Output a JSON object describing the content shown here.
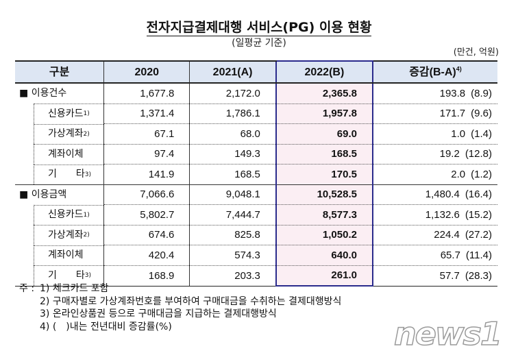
{
  "title": "전자지급결제대행 서비스(PG) 이용 현황",
  "subtitle": "(일평균 기준)",
  "unit": "(만건, 억원)",
  "headers": {
    "category": "구분",
    "y2020": "2020",
    "y2021": "2021(A)",
    "y2022": "2022(B)",
    "change": "증감(B-A)",
    "change_note": "4)"
  },
  "rows": [
    {
      "label": "이용건수",
      "note": "",
      "main": true,
      "v2020": "1,677.8",
      "v2021": "2,172.0",
      "v2022": "2,365.8",
      "diff": "193.8",
      "pct": "(8.9)"
    },
    {
      "label": "신용카드",
      "note": "1)",
      "v2020": "1,371.4",
      "v2021": "1,786.1",
      "v2022": "1,957.8",
      "diff": "171.7",
      "pct": "(9.6)"
    },
    {
      "label": "가상계좌",
      "note": "2)",
      "v2020": "67.1",
      "v2021": "68.0",
      "v2022": "69.0",
      "diff": "1.0",
      "pct": "(1.4)"
    },
    {
      "label": "계좌이체",
      "note": "",
      "v2020": "97.4",
      "v2021": "149.3",
      "v2022": "168.5",
      "diff": "19.2",
      "pct": "(12.8)"
    },
    {
      "label": "기　　타",
      "note": "3)",
      "v2020": "141.9",
      "v2021": "168.5",
      "v2022": "170.5",
      "diff": "2.0",
      "pct": "(1.2)"
    },
    {
      "label": "이용금액",
      "note": "",
      "main": true,
      "v2020": "7,066.6",
      "v2021": "9,048.1",
      "v2022": "10,528.5",
      "diff": "1,480.4",
      "pct": "(16.4)"
    },
    {
      "label": "신용카드",
      "note": "1)",
      "v2020": "5,802.7",
      "v2021": "7,444.7",
      "v2022": "8,577.3",
      "diff": "1,132.6",
      "pct": "(15.2)"
    },
    {
      "label": "가상계좌",
      "note": "2)",
      "v2020": "674.6",
      "v2021": "825.8",
      "v2022": "1,050.2",
      "diff": "224.4",
      "pct": "(27.2)"
    },
    {
      "label": "계좌이체",
      "note": "",
      "v2020": "420.4",
      "v2021": "574.3",
      "v2022": "640.0",
      "diff": "65.7",
      "pct": "(11.4)"
    },
    {
      "label": "기　　타",
      "note": "3)",
      "v2020": "168.9",
      "v2021": "203.3",
      "v2022": "261.0",
      "diff": "57.7",
      "pct": "(28.3)"
    }
  ],
  "notes": {
    "prefix": "주 :",
    "items": [
      "1) 체크카드 포함",
      "2) 구매자별로 가상계좌번호를 부여하여 구매대금을 수취하는 결제대행방식",
      "3) 온라인상품권 등으로 구매대금을 지급하는 결제대행방식",
      "4) (　)내는 전년대비 증감률(%)"
    ]
  },
  "watermark": "news1",
  "colors": {
    "header_bg": "#dde6f3",
    "highlight_bg": "#fbeef3",
    "highlight_border": "#2a2a8c"
  }
}
